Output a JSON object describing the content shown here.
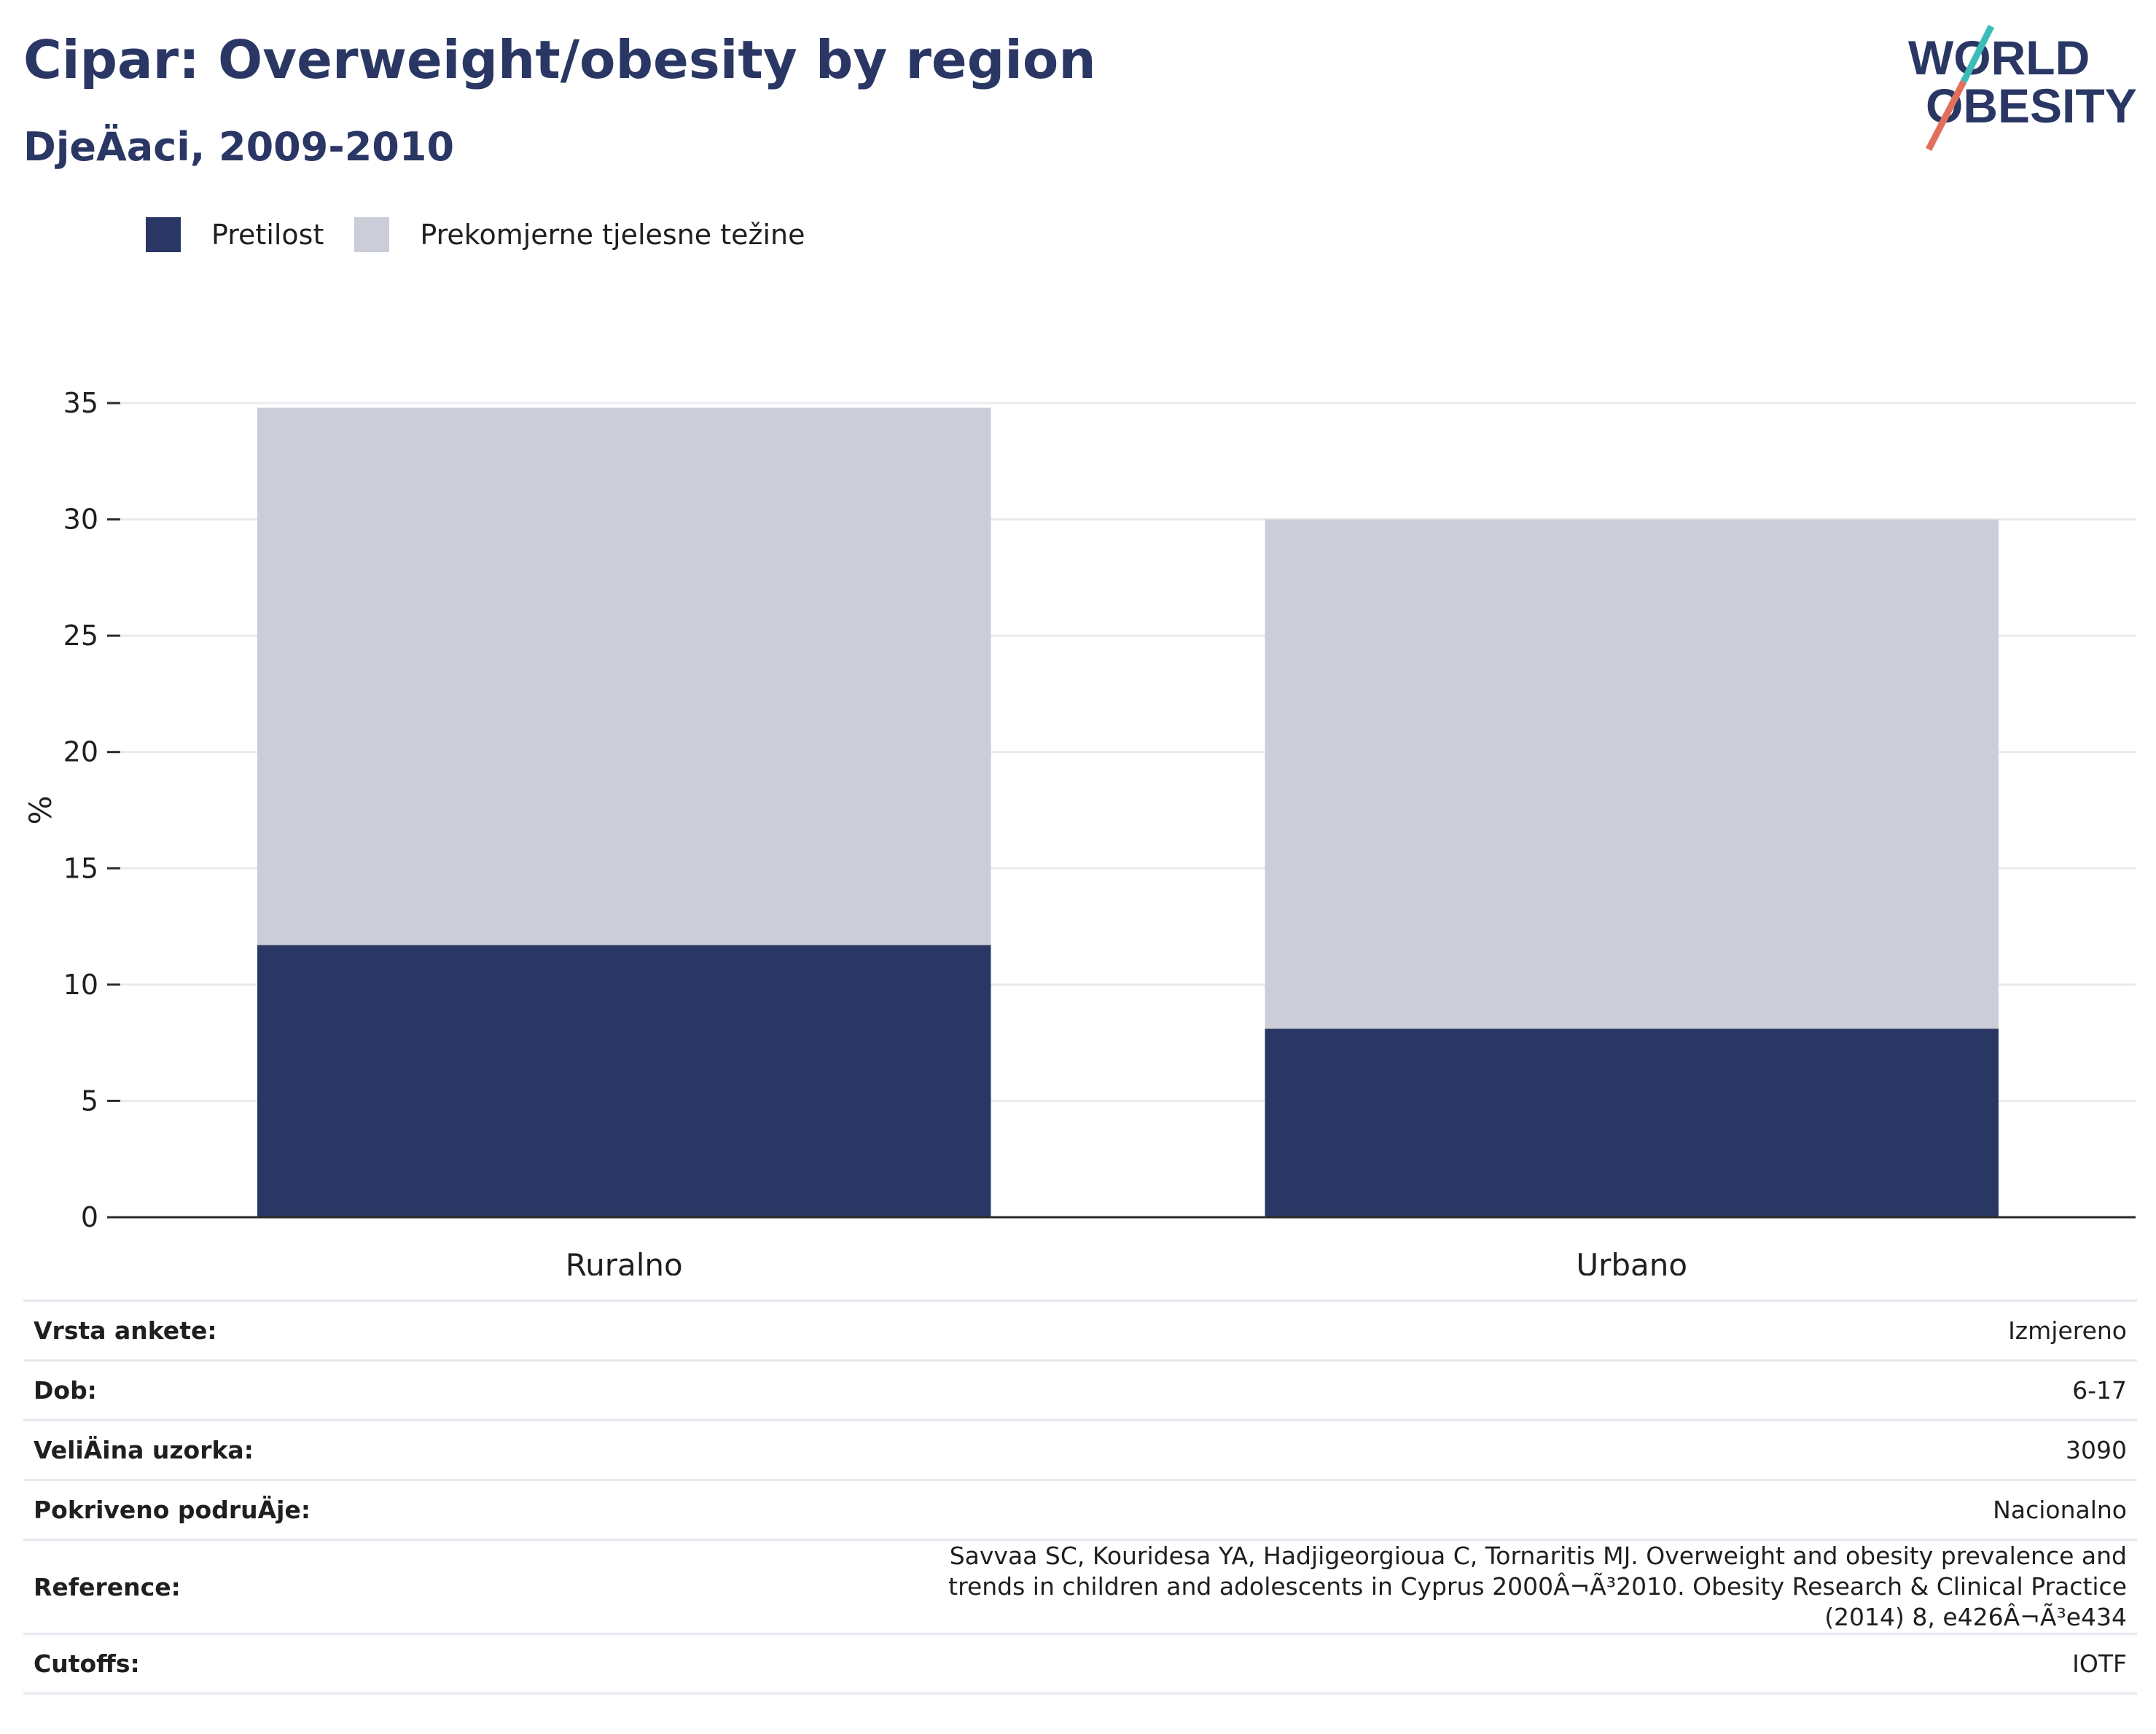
{
  "header": {
    "title": "Cipar: Overweight/obesity by region",
    "subtitle": "DjeÄaci, 2009-2010"
  },
  "logo": {
    "line1": "WORLD",
    "line2": "OBESITY"
  },
  "colors": {
    "obesity": "#2a3764",
    "overweight": "#cbcdd8",
    "title": "#2a3764",
    "logo_teal": "#3bbcb8",
    "logo_coral": "#e0705c"
  },
  "chart_data": {
    "type": "bar",
    "stacked": true,
    "categories": [
      "Ruralno",
      "Urbano"
    ],
    "series": [
      {
        "name": "Pretilost",
        "values": [
          11.7,
          8.1
        ]
      },
      {
        "name": "Prekomjerne tjelesne težine",
        "values": [
          23.1,
          21.9
        ]
      }
    ],
    "ylabel": "%",
    "ylim": [
      0,
      35
    ],
    "yticks": [
      0,
      5,
      10,
      15,
      20,
      25,
      30,
      35
    ],
    "grid": true,
    "legend_position": "top-left"
  },
  "info": [
    {
      "label": "Vrsta ankete:",
      "value": "Izmjereno"
    },
    {
      "label": "Dob:",
      "value": "6-17"
    },
    {
      "label": "VeliÄina uzorka:",
      "value": "3090"
    },
    {
      "label": "Pokriveno podruÄje:",
      "value": "Nacionalno"
    },
    {
      "label": "Reference:",
      "value": "Savvaa SC, Kouridesa YA, Hadjigeorgioua C, Tornaritis MJ. Overweight and obesity prevalence and trends in children and adolescents in Cyprus 2000Â¬Ã³2010. Obesity Research & Clinical Practice (2014) 8, e426Â¬Ã³e434"
    },
    {
      "label": "Cutoffs:",
      "value": "IOTF"
    }
  ]
}
